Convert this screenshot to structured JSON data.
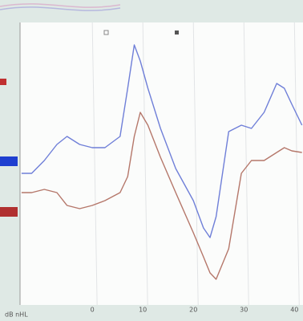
{
  "chart_data": {
    "type": "line",
    "ylabel": "dB nHL",
    "x": [
      -14,
      -12,
      -9.5,
      -7,
      -5,
      -2.5,
      0,
      2.5,
      5.5,
      7,
      8.3,
      9.5,
      11,
      13.5,
      16.5,
      20,
      22,
      23.3,
      24.5,
      27,
      29.5,
      31.5,
      34,
      36.5,
      38,
      39.5,
      41.5
    ],
    "series": [
      {
        "color": "#6f7fd8",
        "values": [
          46,
          46,
          50,
          55,
          57.5,
          55,
          54,
          54,
          57.5,
          72.5,
          86,
          81,
          72.5,
          60,
          47.5,
          37.5,
          29,
          26,
          32.5,
          59,
          61,
          60,
          65,
          74,
          72.5,
          67.5,
          61
        ]
      },
      {
        "color": "#b5776a",
        "values": [
          40,
          40,
          41,
          40,
          36,
          35,
          36,
          37.5,
          40,
          45,
          57.5,
          65,
          61,
          51,
          40,
          27.5,
          20,
          15,
          13,
          22.5,
          46,
          50,
          50,
          52.5,
          54,
          53,
          52.5
        ]
      }
    ],
    "xlim": [
      -14.3,
      41.7
    ],
    "xticks": [
      0,
      10,
      20,
      30,
      40
    ],
    "ylim": [
      0,
      100
    ],
    "grid": true
  }
}
